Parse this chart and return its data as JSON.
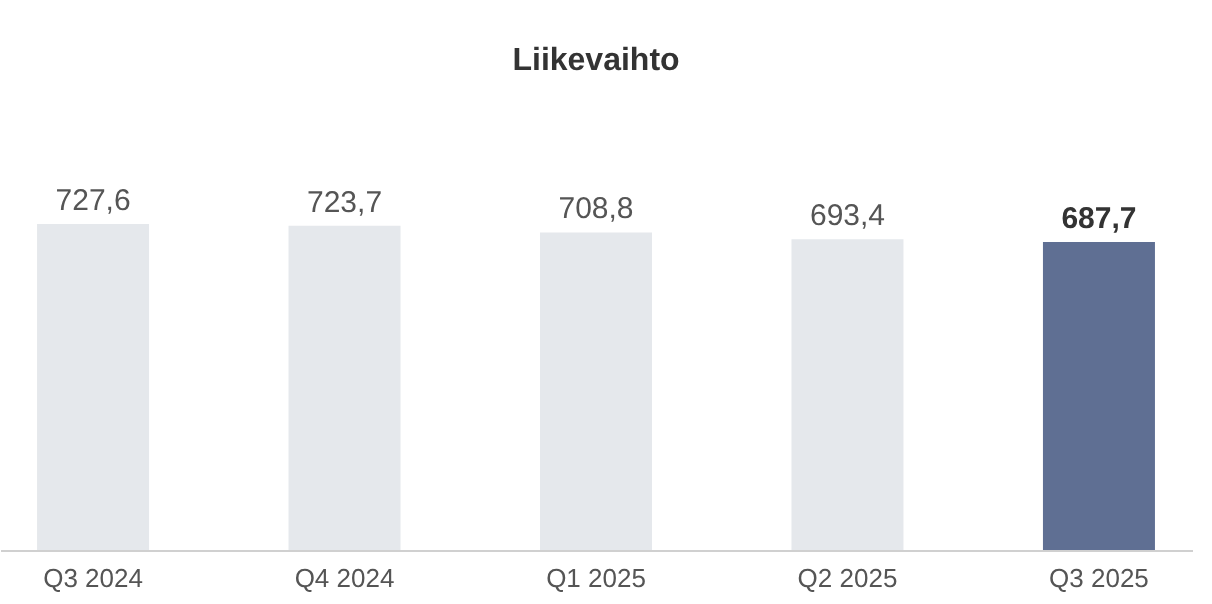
{
  "chart_data": {
    "type": "bar",
    "title": "Liikevaihto",
    "categories": [
      "Q3 2024",
      "Q4 2024",
      "Q1 2025",
      "Q2 2025",
      "Q3 2025"
    ],
    "values": [
      727.6,
      723.7,
      708.8,
      693.4,
      687.7
    ],
    "colors": [
      "#e5e8ec",
      "#e5e8ec",
      "#e5e8ec",
      "#e5e8ec",
      "#5f6f93"
    ],
    "value_labels": [
      "727,6",
      "723,7",
      "708,8",
      "693,4",
      "687,7"
    ],
    "grid": false,
    "tick_labels": "x"
  }
}
